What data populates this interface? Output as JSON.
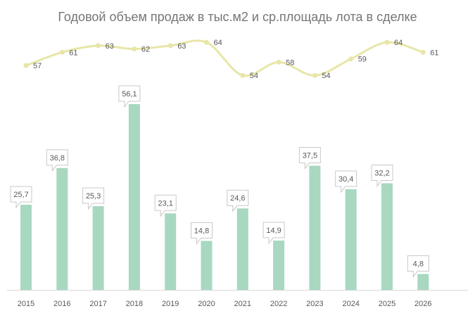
{
  "chart_data": {
    "type": "bar+line",
    "title": "Годовой объем продаж в тыс.м2 и ср.площадь лота в сделке",
    "categories": [
      "2015",
      "2016",
      "2017",
      "2018",
      "2019",
      "2020",
      "2021",
      "2022",
      "2023",
      "2024",
      "2025",
      "2026"
    ],
    "series": [
      {
        "type": "bar",
        "values": [
          25.7,
          36.8,
          25.3,
          56.1,
          23.1,
          14.8,
          24.6,
          14.9,
          37.5,
          30.4,
          32.2,
          4.8
        ],
        "labels": [
          "25,7",
          "36,8",
          "25,3",
          "56,1",
          "23,1",
          "14,8",
          "24,6",
          "14,9",
          "37,5",
          "30,4",
          "32,2",
          "4,8"
        ],
        "color": "#a8d8c0"
      },
      {
        "type": "line",
        "values": [
          57,
          61,
          63,
          62,
          63,
          64,
          54,
          58,
          54,
          59,
          64,
          61
        ],
        "labels": [
          "57",
          "61",
          "63",
          "62",
          "63",
          "64",
          "54",
          "58",
          "54",
          "59",
          "64",
          "61"
        ],
        "color": "#e8e6a8"
      }
    ],
    "legend": "none",
    "grid": false
  }
}
